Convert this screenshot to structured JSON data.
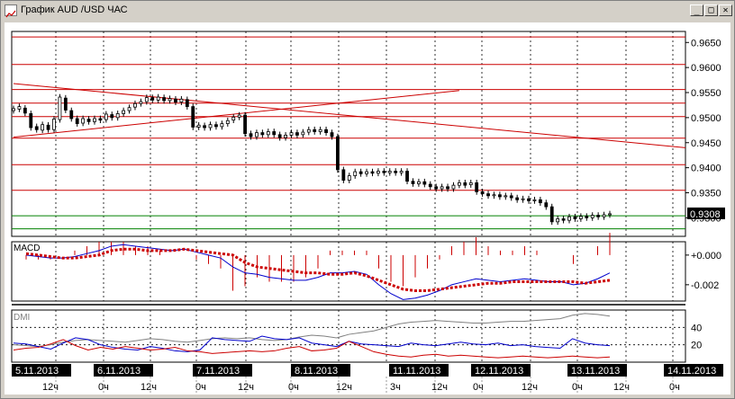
{
  "window": {
    "title": "График AUD /USD  ЧАС",
    "buttons": [
      "minimize",
      "maximize",
      "close"
    ],
    "minimize_glyph": "_",
    "maximize_glyph": "□",
    "close_glyph": "✕"
  },
  "colors": {
    "background": "#ffffff",
    "grid": "#000000",
    "candle": "#000000",
    "resistance_line": "#cc0000",
    "support_line": "#008000",
    "macd_signal": "#cc0000",
    "macd_line": "#0000cc",
    "dmi_adx": "#808080",
    "dmi_plus": "#0000cc",
    "dmi_minus": "#cc0000",
    "price_marker_bg": "#000000",
    "date_label_bg": "#000000"
  },
  "price_panel": {
    "y_ticks": [
      "0.9650",
      "0.9600",
      "0.9550",
      "0.9500",
      "0.9450",
      "0.9400",
      "0.9350",
      "0.9300"
    ],
    "current_price": "0.9308",
    "horizontal_levels": [
      0.9661,
      0.9606,
      0.9556,
      0.9529,
      0.9502,
      0.9459,
      0.9406,
      0.9355
    ],
    "green_levels": [
      0.9304,
      0.9278
    ]
  },
  "macd_panel": {
    "title": "MACD",
    "y_ticks": [
      "+0.000",
      "-0.002"
    ]
  },
  "dmi_panel": {
    "title": "DMI",
    "y_ticks": [
      "40",
      "20"
    ]
  },
  "time_axis": {
    "dates": [
      "5.11.2013",
      "6.11.2013",
      "7.11.2013",
      "8.11.2013",
      "11.11.2013",
      "12.11.2013",
      "13.11.2013",
      "14.11.2013"
    ],
    "hours": [
      "12ч",
      "0ч",
      "12ч",
      "0ч",
      "12ч",
      "0ч",
      "12ч",
      "3ч",
      "12ч",
      "0ч",
      "12ч",
      "0ч",
      "12ч",
      "0ч"
    ]
  },
  "chart_data": {
    "type": "candlestick",
    "title": "График AUD /USD  ЧАС",
    "ylim": [
      0.9263,
      0.9672
    ],
    "candles": [
      {
        "o": 0.9514,
        "c": 0.9518
      },
      {
        "o": 0.9517,
        "c": 0.9522
      },
      {
        "o": 0.9519,
        "c": 0.9509
      },
      {
        "o": 0.9508,
        "c": 0.948
      },
      {
        "o": 0.9482,
        "c": 0.9476
      },
      {
        "o": 0.9475,
        "c": 0.9486
      },
      {
        "o": 0.9485,
        "c": 0.9476
      },
      {
        "o": 0.9476,
        "c": 0.9497
      },
      {
        "o": 0.9496,
        "c": 0.9541
      },
      {
        "o": 0.9539,
        "c": 0.9515
      },
      {
        "o": 0.9514,
        "c": 0.9498
      },
      {
        "o": 0.9498,
        "c": 0.9488
      },
      {
        "o": 0.9489,
        "c": 0.9498
      },
      {
        "o": 0.9497,
        "c": 0.9492
      },
      {
        "o": 0.9492,
        "c": 0.9498
      },
      {
        "o": 0.9498,
        "c": 0.9495
      },
      {
        "o": 0.9496,
        "c": 0.9507
      },
      {
        "o": 0.9506,
        "c": 0.95
      },
      {
        "o": 0.95,
        "c": 0.9508
      },
      {
        "o": 0.9508,
        "c": 0.9514
      },
      {
        "o": 0.9514,
        "c": 0.952
      },
      {
        "o": 0.9521,
        "c": 0.9528
      },
      {
        "o": 0.9528,
        "c": 0.9532
      },
      {
        "o": 0.9532,
        "c": 0.954
      },
      {
        "o": 0.954,
        "c": 0.9535
      },
      {
        "o": 0.9535,
        "c": 0.9541
      },
      {
        "o": 0.954,
        "c": 0.9534
      },
      {
        "o": 0.9534,
        "c": 0.9538
      },
      {
        "o": 0.9537,
        "c": 0.9531
      },
      {
        "o": 0.9531,
        "c": 0.9537
      },
      {
        "o": 0.9536,
        "c": 0.9522
      },
      {
        "o": 0.9522,
        "c": 0.9481
      },
      {
        "o": 0.9481,
        "c": 0.9485
      },
      {
        "o": 0.9484,
        "c": 0.948
      },
      {
        "o": 0.948,
        "c": 0.9486
      },
      {
        "o": 0.9486,
        "c": 0.9482
      },
      {
        "o": 0.9482,
        "c": 0.9488
      },
      {
        "o": 0.9488,
        "c": 0.9494
      },
      {
        "o": 0.9495,
        "c": 0.9501
      },
      {
        "o": 0.9501,
        "c": 0.9505
      },
      {
        "o": 0.9505,
        "c": 0.9468
      },
      {
        "o": 0.9468,
        "c": 0.9462
      },
      {
        "o": 0.9462,
        "c": 0.947
      },
      {
        "o": 0.947,
        "c": 0.9466
      },
      {
        "o": 0.9466,
        "c": 0.9472
      },
      {
        "o": 0.9472,
        "c": 0.9466
      },
      {
        "o": 0.9466,
        "c": 0.946
      },
      {
        "o": 0.946,
        "c": 0.9465
      },
      {
        "o": 0.9465,
        "c": 0.947
      },
      {
        "o": 0.947,
        "c": 0.9465
      },
      {
        "o": 0.9466,
        "c": 0.9471
      },
      {
        "o": 0.9471,
        "c": 0.9476
      },
      {
        "o": 0.9476,
        "c": 0.9472
      },
      {
        "o": 0.9472,
        "c": 0.9476
      },
      {
        "o": 0.9476,
        "c": 0.947
      },
      {
        "o": 0.947,
        "c": 0.9462
      },
      {
        "o": 0.9462,
        "c": 0.9396
      },
      {
        "o": 0.9396,
        "c": 0.9375
      },
      {
        "o": 0.9375,
        "c": 0.9384
      },
      {
        "o": 0.9384,
        "c": 0.9392
      },
      {
        "o": 0.9392,
        "c": 0.9388
      },
      {
        "o": 0.9388,
        "c": 0.9392
      },
      {
        "o": 0.9392,
        "c": 0.9389
      },
      {
        "o": 0.9389,
        "c": 0.9393
      },
      {
        "o": 0.9393,
        "c": 0.939
      },
      {
        "o": 0.939,
        "c": 0.9393
      },
      {
        "o": 0.9393,
        "c": 0.939
      },
      {
        "o": 0.939,
        "c": 0.9393
      },
      {
        "o": 0.9393,
        "c": 0.9373
      },
      {
        "o": 0.9373,
        "c": 0.9368
      },
      {
        "o": 0.9368,
        "c": 0.9372
      },
      {
        "o": 0.9372,
        "c": 0.9367
      },
      {
        "o": 0.9367,
        "c": 0.9362
      },
      {
        "o": 0.9362,
        "c": 0.9358
      },
      {
        "o": 0.9358,
        "c": 0.9362
      },
      {
        "o": 0.9362,
        "c": 0.9358
      },
      {
        "o": 0.9358,
        "c": 0.9365
      },
      {
        "o": 0.9365,
        "c": 0.937
      },
      {
        "o": 0.937,
        "c": 0.9365
      },
      {
        "o": 0.9366,
        "c": 0.937
      },
      {
        "o": 0.937,
        "c": 0.9352
      },
      {
        "o": 0.9352,
        "c": 0.9348
      },
      {
        "o": 0.9348,
        "c": 0.9344
      },
      {
        "o": 0.9344,
        "c": 0.9346
      },
      {
        "o": 0.9346,
        "c": 0.9342
      },
      {
        "o": 0.9342,
        "c": 0.9344
      },
      {
        "o": 0.9344,
        "c": 0.934
      },
      {
        "o": 0.934,
        "c": 0.9336
      },
      {
        "o": 0.9336,
        "c": 0.9338
      },
      {
        "o": 0.9338,
        "c": 0.9334
      },
      {
        "o": 0.9334,
        "c": 0.9336
      },
      {
        "o": 0.9336,
        "c": 0.933
      },
      {
        "o": 0.933,
        "c": 0.9322
      },
      {
        "o": 0.9322,
        "c": 0.9292
      },
      {
        "o": 0.9292,
        "c": 0.9298
      },
      {
        "o": 0.9298,
        "c": 0.9295
      },
      {
        "o": 0.9295,
        "c": 0.9302
      },
      {
        "o": 0.9302,
        "c": 0.9298
      },
      {
        "o": 0.9298,
        "c": 0.9303
      },
      {
        "o": 0.9303,
        "c": 0.93
      },
      {
        "o": 0.93,
        "c": 0.9305
      },
      {
        "o": 0.9305,
        "c": 0.9302
      },
      {
        "o": 0.9302,
        "c": 0.9306
      },
      {
        "o": 0.9306,
        "c": 0.9308
      }
    ],
    "trend_lines": [
      {
        "x1_index": 0,
        "y1": 0.9568,
        "x2_index": 140,
        "y2": 0.944
      },
      {
        "x1_index": 0,
        "y1": 0.9461,
        "x2_index": 77,
        "y2": 0.9554
      }
    ],
    "macd": {
      "signal": [
        0.0001,
        0.0,
        -0.0001,
        -0.0002,
        -0.0002,
        -0.0001,
        0.0,
        0.0003,
        0.0004,
        0.0004,
        0.0003,
        0.0003,
        0.0003,
        0.0004,
        0.0003,
        0.0002,
        0.0001,
        0.0,
        -0.0005,
        -0.0008,
        -0.0009,
        -0.001,
        -0.0011,
        -0.0012,
        -0.0012,
        -0.0013,
        -0.0013,
        -0.0012,
        -0.0014,
        -0.0017,
        -0.002,
        -0.0023,
        -0.0024,
        -0.0024,
        -0.0023,
        -0.0022,
        -0.0021,
        -0.002,
        -0.0019,
        -0.0019,
        -0.0018,
        -0.0018,
        -0.0018,
        -0.0018,
        -0.0018,
        -0.0018,
        -0.0019,
        -0.0018,
        -0.0017
      ],
      "macd": [
        0.0,
        -0.0001,
        -0.0002,
        -0.0002,
        -0.0001,
        0.0001,
        0.0003,
        0.0006,
        0.0007,
        0.0006,
        0.0005,
        0.0004,
        0.0003,
        0.0004,
        0.0002,
        0.0,
        -0.0002,
        -0.0008,
        -0.0012,
        -0.0013,
        -0.0015,
        -0.0016,
        -0.0017,
        -0.0017,
        -0.0015,
        -0.0012,
        -0.0012,
        -0.0011,
        -0.0013,
        -0.002,
        -0.0026,
        -0.003,
        -0.0029,
        -0.0027,
        -0.0024,
        -0.002,
        -0.0018,
        -0.0016,
        -0.0017,
        -0.0018,
        -0.0017,
        -0.0016,
        -0.0017,
        -0.0018,
        -0.0018,
        -0.002,
        -0.0019,
        -0.0016,
        -0.0012
      ]
    },
    "dmi": {
      "adx": [
        20,
        19,
        18,
        20,
        23,
        25,
        26,
        25,
        24,
        23,
        25,
        27,
        26,
        24,
        23,
        25,
        27,
        28,
        27,
        28,
        26,
        25,
        26,
        29,
        31,
        30,
        28,
        32,
        34,
        36,
        40,
        44,
        46,
        47,
        48,
        47,
        46,
        45,
        45,
        46,
        47,
        47,
        48,
        49,
        50,
        54,
        56,
        55,
        53
      ],
      "plus_di": [
        22,
        21,
        18,
        15,
        22,
        28,
        26,
        20,
        17,
        15,
        14,
        18,
        16,
        13,
        12,
        14,
        28,
        26,
        25,
        24,
        30,
        27,
        26,
        28,
        22,
        20,
        18,
        24,
        21,
        20,
        19,
        18,
        22,
        20,
        19,
        21,
        23,
        21,
        20,
        22,
        19,
        20,
        18,
        17,
        16,
        27,
        22,
        20,
        19
      ],
      "minus_di": [
        14,
        16,
        17,
        21,
        26,
        19,
        14,
        17,
        15,
        18,
        16,
        14,
        15,
        17,
        13,
        12,
        10,
        11,
        12,
        13,
        12,
        13,
        16,
        18,
        13,
        14,
        16,
        24,
        18,
        12,
        9,
        7,
        6,
        8,
        9,
        7,
        8,
        7,
        6,
        5,
        6,
        7,
        6,
        5,
        6,
        7,
        6,
        5,
        6
      ]
    }
  }
}
